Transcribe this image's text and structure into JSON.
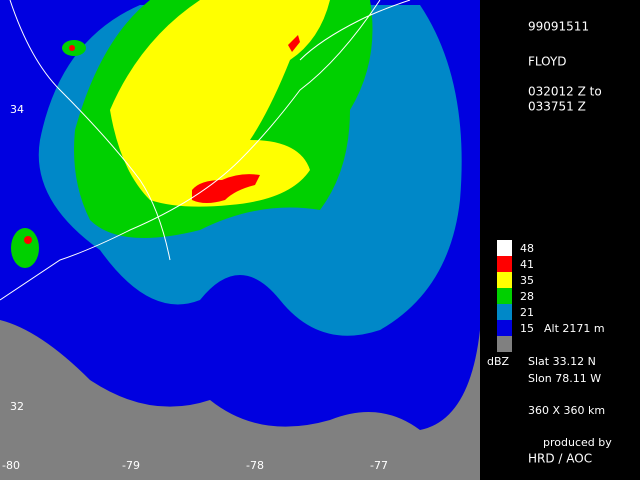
{
  "header": {
    "date": "99091511",
    "storm": "FLOYD",
    "time_start": "032012 Z to",
    "time_end": "033751 Z"
  },
  "legend": {
    "entries": [
      {
        "label": "48",
        "color": "#ffffff"
      },
      {
        "label": "41",
        "color": "#ff0000"
      },
      {
        "label": "35",
        "color": "#ffff00"
      },
      {
        "label": "28",
        "color": "#00d000"
      },
      {
        "label": "21",
        "color": "#0088c8"
      },
      {
        "label": "15",
        "color": "#0000e0"
      },
      {
        "label": "",
        "color": "#808080"
      }
    ],
    "altitude": "Alt  2171  m",
    "unit": "dBZ"
  },
  "info": {
    "slat": "Slat    33.12  N",
    "slon": "Slon    78.11  W",
    "extent": "360  X  360  km",
    "produced_by": "produced by",
    "producer": "HRD  /  AOC"
  },
  "map": {
    "lat_labels": [
      "34",
      "32"
    ],
    "lon_labels": [
      "-80",
      "-79",
      "-78",
      "-77"
    ]
  }
}
